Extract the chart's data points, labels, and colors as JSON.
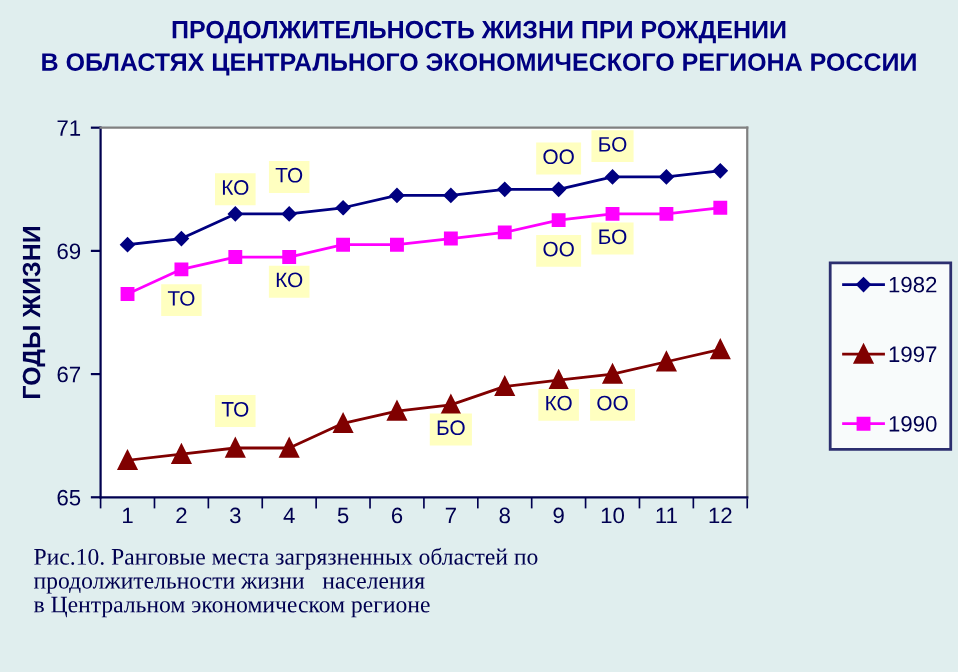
{
  "chart_data": {
    "type": "line",
    "title": "ПРОДОЛЖИТЕЛЬНОСТЬ ЖИЗНИ ПРИ РОЖДЕНИИ\nВ ОБЛАСТЯХ ЦЕНТРАЛЬНОГО ЭКОНОМИЧЕСКОГО РЕГИОНА РОССИИ",
    "ylabel": "ГОДЫ ЖИЗНИ",
    "categories": [
      "1",
      "2",
      "3",
      "4",
      "5",
      "6",
      "7",
      "8",
      "9",
      "10",
      "11",
      "12"
    ],
    "series": [
      {
        "name": "1982",
        "color": "#000080",
        "marker": "diamond",
        "values": [
          69.1,
          69.2,
          69.6,
          69.6,
          69.7,
          69.9,
          69.9,
          70.0,
          70.0,
          70.2,
          70.2,
          70.3
        ]
      },
      {
        "name": "1997",
        "color": "#800000",
        "marker": "triangle",
        "values": [
          65.6,
          65.7,
          65.8,
          65.8,
          66.2,
          66.4,
          66.5,
          66.8,
          66.9,
          67.0,
          67.2,
          67.4
        ]
      },
      {
        "name": "1990",
        "color": "#ff00ff",
        "marker": "square",
        "values": [
          68.3,
          68.7,
          68.9,
          68.9,
          69.1,
          69.1,
          69.2,
          69.3,
          69.5,
          69.6,
          69.6,
          69.7
        ]
      }
    ],
    "ylim": [
      65,
      71
    ],
    "yticks": [
      65,
      67,
      69,
      71
    ],
    "grid": false,
    "legend": "right",
    "line_style": "solid",
    "annotations": [
      {
        "text": "КО",
        "x": "3",
        "y": 70.0
      },
      {
        "text": "ТО",
        "x": "4",
        "y": 70.2
      },
      {
        "text": "ОО",
        "x": "9",
        "y": 70.5
      },
      {
        "text": "БО",
        "x": "10",
        "y": 70.7
      },
      {
        "text": "ТО",
        "x": "2",
        "y": 68.2
      },
      {
        "text": "КО",
        "x": "4",
        "y": 68.5
      },
      {
        "text": "ОО",
        "x": "9",
        "y": 69.0
      },
      {
        "text": "БО",
        "x": "10",
        "y": 69.2
      },
      {
        "text": "ТО",
        "x": "3",
        "y": 66.4
      },
      {
        "text": "БО",
        "x": "7",
        "y": 66.1
      },
      {
        "text": "КО",
        "x": "9",
        "y": 66.5
      },
      {
        "text": "ОО",
        "x": "10",
        "y": 66.5
      },
      "Рис.10. Ранговые места загрязненных областей по\nпродолжительности жизни   населения\nв Центральном экономическом регионе"
    ]
  }
}
